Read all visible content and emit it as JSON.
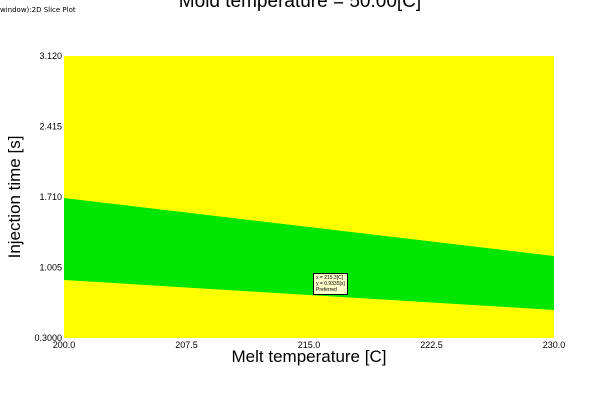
{
  "window_label": "window):2D Slice Plot",
  "chart_data": {
    "type": "heatmap",
    "title": "Mold temperature = 50.00[C]",
    "xlabel": "Melt temperature [C]",
    "ylabel": "Injection time [s]",
    "xlim": [
      200.0,
      230.0
    ],
    "ylim": [
      0.3,
      3.12
    ],
    "x_ticks": [
      "200.0",
      "207.5",
      "215.0",
      "222.5",
      "230.0"
    ],
    "x_tick_values": [
      200.0,
      207.5,
      215.0,
      222.5,
      230.0
    ],
    "y_ticks": [
      "3.120",
      "2.415",
      "1.710",
      "1.005",
      "0.3000"
    ],
    "y_tick_values": [
      3.12,
      2.415,
      1.71,
      1.005,
      0.3
    ],
    "background_color": "#ffff00",
    "region_color": "#00e600",
    "preferred_band": {
      "x": [
        200.0,
        230.0
      ],
      "upper": [
        1.7,
        1.12
      ],
      "lower": [
        0.88,
        0.58
      ]
    },
    "cursor": {
      "x_text": "x = 215.3[C]",
      "y_text": "y = 0.9335[s]",
      "status": "Preferred",
      "x": 215.3,
      "y": 0.9335
    }
  }
}
